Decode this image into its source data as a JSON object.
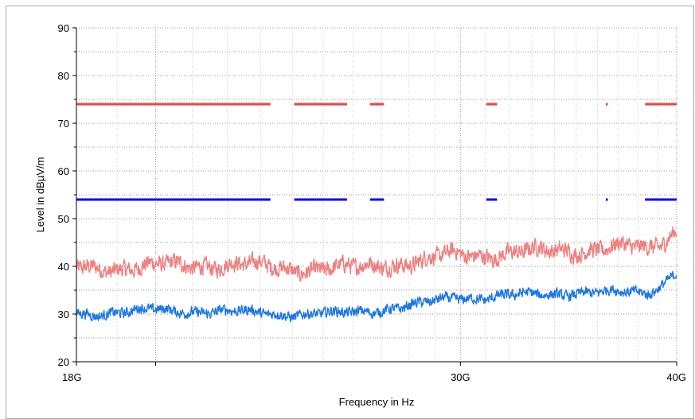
{
  "chart_data": {
    "type": "line",
    "xlabel": "Frequency in Hz",
    "ylabel": "Level in dBµV/m",
    "xscale": "log",
    "xlim": [
      18000000000,
      40000000000
    ],
    "ylim": [
      20,
      90
    ],
    "x_ticks": [
      {
        "value": 18000000000,
        "label": "18G"
      },
      {
        "value": 30000000000,
        "label": "30G"
      },
      {
        "value": 40000000000,
        "label": "40G"
      }
    ],
    "y_ticks": [
      20,
      30,
      40,
      50,
      60,
      70,
      80,
      90
    ],
    "grid": true,
    "legend": "none",
    "series": [
      {
        "style": "dashed-limit",
        "color": "#ff3c3c",
        "segments": [
          {
            "x": [
              18000000000,
              23300000000
            ],
            "y": [
              74,
              74
            ]
          },
          {
            "x": [
              24050000000,
              25800000000
            ],
            "y": [
              74,
              74
            ]
          },
          {
            "x": [
              26600000000,
              27100000000
            ],
            "y": [
              74,
              74
            ]
          },
          {
            "x": [
              31050000000,
              31500000000
            ],
            "y": [
              74,
              74
            ]
          },
          {
            "x": [
              36400000000,
              36500000000
            ],
            "y": [
              74,
              74
            ]
          },
          {
            "x": [
              38350000000,
              40000000000
            ],
            "y": [
              74,
              74
            ]
          }
        ]
      },
      {
        "style": "dashed-limit",
        "color": "#0000ff",
        "segments": [
          {
            "x": [
              18000000000,
              23300000000
            ],
            "y": [
              54,
              54
            ]
          },
          {
            "x": [
              24050000000,
              25800000000
            ],
            "y": [
              54,
              54
            ]
          },
          {
            "x": [
              26600000000,
              27100000000
            ],
            "y": [
              54,
              54
            ]
          },
          {
            "x": [
              31050000000,
              31500000000
            ],
            "y": [
              54,
              54
            ]
          },
          {
            "x": [
              36400000000,
              36500000000
            ],
            "y": [
              54,
              54
            ]
          },
          {
            "x": [
              38350000000,
              40000000000
            ],
            "y": [
              54,
              54
            ]
          }
        ]
      },
      {
        "style": "noisy-trace",
        "color": "#f08080",
        "amplitude": 1.6,
        "points": [
          {
            "x": 18000000000,
            "y": 39.5
          },
          {
            "x": 20000000000,
            "y": 40.0
          },
          {
            "x": 22000000000,
            "y": 40.5
          },
          {
            "x": 24000000000,
            "y": 39.5
          },
          {
            "x": 26000000000,
            "y": 39.5
          },
          {
            "x": 27000000000,
            "y": 40.5
          },
          {
            "x": 28500000000,
            "y": 41.0
          },
          {
            "x": 29800000000,
            "y": 42.5
          },
          {
            "x": 31000000000,
            "y": 42.5
          },
          {
            "x": 33000000000,
            "y": 43.0
          },
          {
            "x": 35000000000,
            "y": 43.5
          },
          {
            "x": 37000000000,
            "y": 44.0
          },
          {
            "x": 38500000000,
            "y": 43.5
          },
          {
            "x": 39200000000,
            "y": 45.0
          },
          {
            "x": 40000000000,
            "y": 48.0
          }
        ]
      },
      {
        "style": "noisy-trace",
        "color": "#1e78e6",
        "amplitude": 1.0,
        "points": [
          {
            "x": 18000000000,
            "y": 30.0
          },
          {
            "x": 20000000000,
            "y": 30.8
          },
          {
            "x": 22000000000,
            "y": 30.5
          },
          {
            "x": 24000000000,
            "y": 30.0
          },
          {
            "x": 25500000000,
            "y": 30.0
          },
          {
            "x": 27000000000,
            "y": 31.0
          },
          {
            "x": 28500000000,
            "y": 32.0
          },
          {
            "x": 29800000000,
            "y": 33.5
          },
          {
            "x": 31000000000,
            "y": 33.5
          },
          {
            "x": 33000000000,
            "y": 34.0
          },
          {
            "x": 35000000000,
            "y": 34.5
          },
          {
            "x": 37000000000,
            "y": 34.5
          },
          {
            "x": 38500000000,
            "y": 34.5
          },
          {
            "x": 39300000000,
            "y": 36.5
          },
          {
            "x": 40000000000,
            "y": 39.0
          }
        ]
      }
    ]
  }
}
